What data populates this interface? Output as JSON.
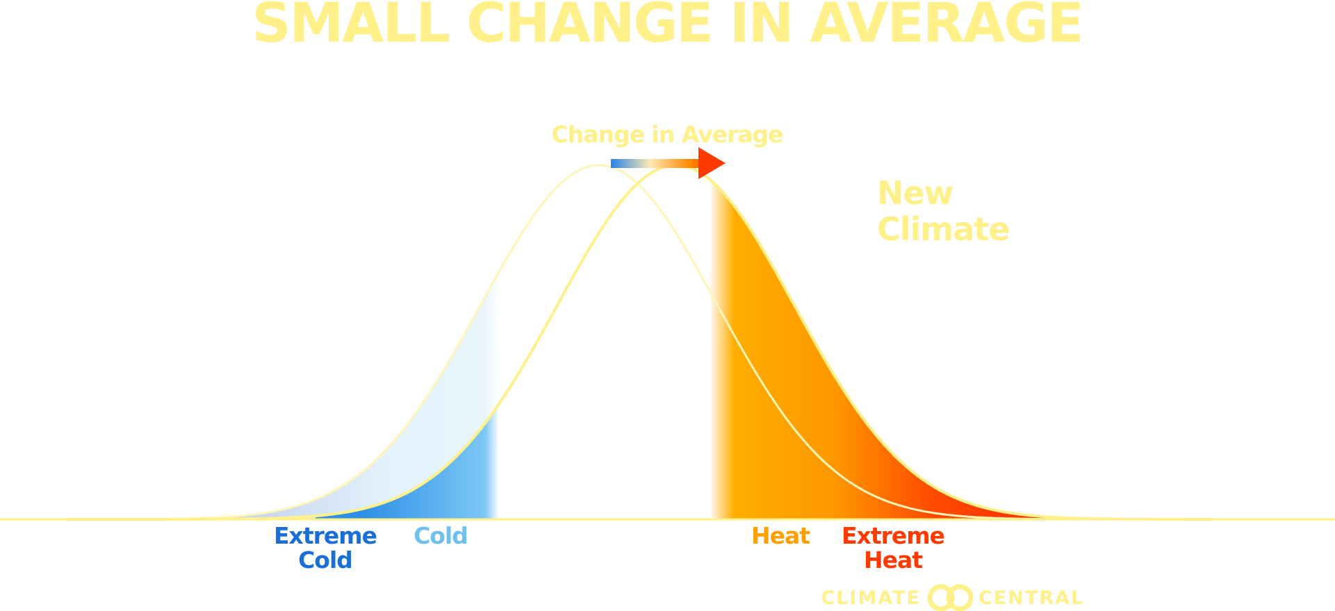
{
  "title": "SMALL CHANGE IN AVERAGE",
  "arrow_label": "Change in Average",
  "new_climate_label": [
    "New",
    "Climate"
  ],
  "category_labels": {
    "extreme_cold": [
      "Extreme",
      "Cold"
    ],
    "cold": "Cold",
    "heat": "Heat",
    "extreme_heat": [
      "Extreme",
      "Heat"
    ]
  },
  "logo": {
    "left": "CLIMATE",
    "right": "CENTRAL"
  },
  "colors": {
    "title": "#fff08a",
    "curve": "#fff08a",
    "old_curve": "#fff7c0",
    "extreme_cold": "#1a6fd6",
    "cold": "#6fc0f0",
    "heat": "#ffa000",
    "extreme_heat": "#ff3a00",
    "baseline": "#fff08a"
  },
  "chart_data": {
    "type": "area",
    "title": "SMALL CHANGE IN AVERAGE",
    "description_free": true,
    "series": [
      {
        "name": "",
        "mean": 0,
        "sd": 1
      },
      {
        "name": "New Climate",
        "mean": 0.65,
        "sd": 1
      }
    ],
    "shift_in_average_sd": 0.65,
    "annotations": [
      "Change in Average",
      "New Climate"
    ],
    "regions": [
      "Extreme Cold",
      "Cold",
      "Heat",
      "Extreme Heat"
    ]
  }
}
